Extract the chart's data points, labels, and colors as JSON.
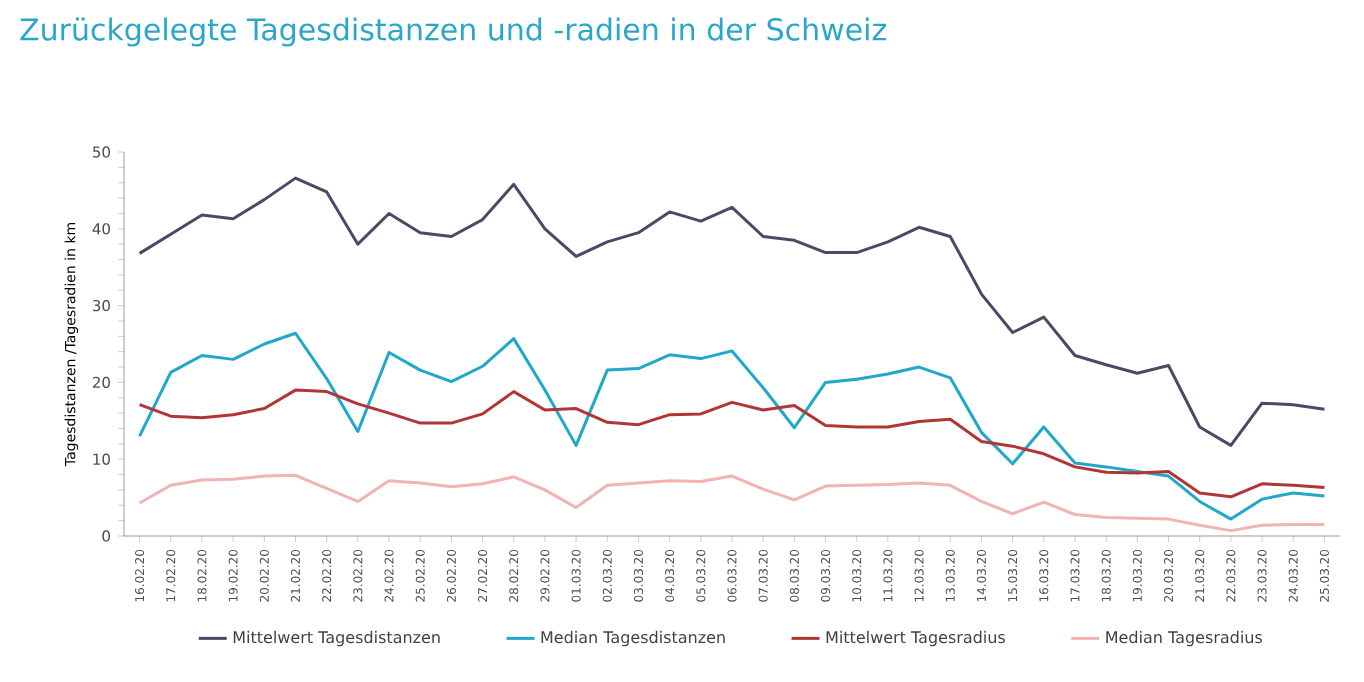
{
  "chart_data": {
    "type": "line",
    "title": "Zurückgelegte Tagesdistanzen und -radien in der Schweiz",
    "ylabel": "Tagesdistanzen /Tagesradien in km",
    "categories": [
      "16.02.20",
      "17.02.20",
      "18.02.20",
      "19.02.20",
      "20.02.20",
      "21.02.20",
      "22.02.20",
      "23.02.20",
      "24.02.20",
      "25.02.20",
      "26.02.20",
      "27.02.20",
      "28.02.20",
      "29.02.20",
      "01.03.20",
      "02.03.20",
      "03.03.20",
      "04.03.20",
      "05.03.20",
      "06.03.20",
      "07.03.20",
      "08.03.20",
      "09.03.20",
      "10.03.20",
      "11.03.20",
      "12.03.20",
      "13.03.20",
      "14.03.20",
      "15.03.20",
      "16.03.20",
      "17.03.20",
      "18.03.20",
      "19.03.20",
      "20.03.20",
      "21.03.20",
      "22.03.20",
      "23.03.20",
      "24.03.20",
      "25.03.20"
    ],
    "series": [
      {
        "name": "Mittelwert Tagesdistanzen",
        "color": "#4a4a66",
        "values": [
          36.8,
          39.3,
          41.8,
          41.3,
          43.8,
          46.6,
          44.8,
          38,
          42,
          39.5,
          39,
          41.2,
          45.8,
          40,
          36.4,
          38.3,
          39.5,
          42.2,
          41,
          42.8,
          39,
          38.5,
          36.9,
          36.9,
          38.3,
          40.2,
          39,
          31.5,
          26.5,
          28.5,
          23.5,
          22.3,
          21.2,
          22.2,
          14.2,
          11.8,
          17.3,
          17.1,
          16.5
        ]
      },
      {
        "name": "Median Tagesdistanzen",
        "color": "#1fa8c9",
        "values": [
          13,
          21.3,
          23.5,
          23,
          25,
          26.4,
          20.5,
          13.6,
          23.9,
          21.6,
          20.1,
          22.1,
          25.7,
          19,
          11.8,
          21.6,
          21.8,
          23.6,
          23.1,
          24.1,
          19.3,
          14.1,
          20,
          20.4,
          21.1,
          22,
          20.6,
          13.5,
          9.4,
          14.2,
          9.5,
          9,
          8.4,
          7.8,
          4.5,
          2.2,
          4.8,
          5.6,
          5.2
        ]
      },
      {
        "name": "Mittelwert Tagesradius",
        "color": "#b23535",
        "values": [
          17.1,
          15.6,
          15.4,
          15.8,
          16.6,
          19,
          18.8,
          17.2,
          16,
          14.7,
          14.7,
          15.9,
          18.8,
          16.4,
          16.6,
          14.8,
          14.5,
          15.8,
          15.9,
          17.4,
          16.4,
          17,
          14.4,
          14.2,
          14.2,
          14.9,
          15.2,
          12.3,
          11.7,
          10.7,
          9,
          8.3,
          8.2,
          8.4,
          5.6,
          5.1,
          6.8,
          6.6,
          6.3
        ]
      },
      {
        "name": "Median Tagesradius",
        "color": "#f2b3b3",
        "values": [
          4.3,
          6.6,
          7.3,
          7.4,
          7.8,
          7.9,
          6.2,
          4.5,
          7.2,
          6.9,
          6.4,
          6.8,
          7.7,
          6,
          3.7,
          6.6,
          6.9,
          7.2,
          7.1,
          7.8,
          6.1,
          4.7,
          6.5,
          6.6,
          6.7,
          6.9,
          6.6,
          4.5,
          2.9,
          4.4,
          2.8,
          2.4,
          2.3,
          2.2,
          1.4,
          0.7,
          1.4,
          1.5,
          1.5
        ]
      }
    ],
    "ylim": [
      0,
      50
    ],
    "yticks": [
      0,
      10,
      20,
      30,
      40,
      50
    ],
    "grid": false,
    "legend": "bottom",
    "marker": "none",
    "line_style": "solid"
  }
}
